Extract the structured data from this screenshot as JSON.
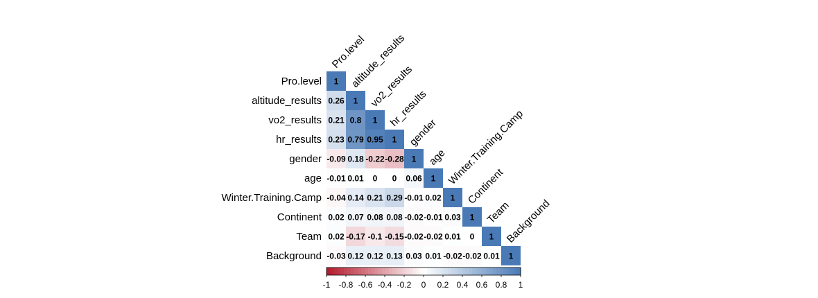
{
  "chart_data": {
    "type": "heatmap",
    "variables": [
      "Pro.level",
      "altitude_results",
      "vo2_results",
      "hr_results",
      "gender",
      "age",
      "Winter.Training.Camp",
      "Continent",
      "Team",
      "Background"
    ],
    "matrix_lower": [
      [
        1
      ],
      [
        0.26,
        1
      ],
      [
        0.21,
        0.8,
        1
      ],
      [
        0.23,
        0.79,
        0.95,
        1
      ],
      [
        -0.09,
        0.18,
        -0.22,
        -0.28,
        1
      ],
      [
        -0.01,
        0.01,
        0,
        0,
        0.06,
        1
      ],
      [
        -0.04,
        0.14,
        0.21,
        0.29,
        -0.01,
        0.02,
        1
      ],
      [
        0.02,
        0.07,
        0.08,
        0.08,
        -0.02,
        -0.01,
        0.03,
        1
      ],
      [
        0.02,
        -0.17,
        -0.1,
        -0.15,
        -0.02,
        -0.02,
        0.01,
        0,
        1
      ],
      [
        -0.03,
        0.12,
        0.12,
        0.13,
        0.03,
        0.01,
        -0.02,
        -0.02,
        0.01,
        1
      ]
    ],
    "colorbar": {
      "range": [
        -1,
        1
      ],
      "ticks": [
        "-1",
        "-0.8",
        "-0.6",
        "-0.4",
        "-0.2",
        "0",
        "0.2",
        "0.4",
        "0.6",
        "0.8",
        "1"
      ],
      "colors": {
        "negative": "#b2182b",
        "zero": "#ffffff",
        "positive": "#4a7ab6"
      }
    }
  }
}
